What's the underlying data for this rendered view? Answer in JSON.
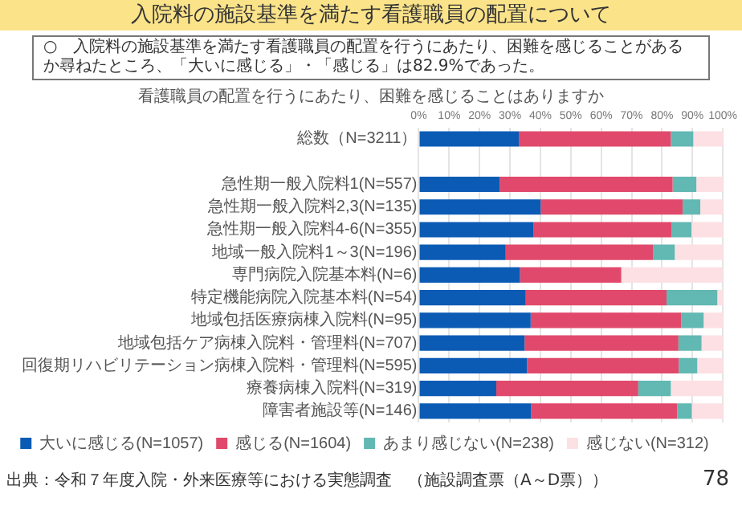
{
  "chart_data": {
    "type": "bar",
    "orientation": "horizontal",
    "stacked": true,
    "title": "入院料の施設基準を満たす看護職員の配置について",
    "subtitle": "看護職員の配置を行うにあたり、困難を感じることはありますか",
    "annotations": [
      "○　入院料の施設基準を満たす看護職員の配置を行うにあたり、困難を感じることがあるか尋ねたところ、「大いに感じる」・「感じる」は82.9%であった。",
      "出典：令和７年度入院・外来医療等における実態調査　（施設調査票（A～D票））",
      "78"
    ],
    "categories": [
      "総数（N=3211）",
      null,
      "急性期一般入院料1(N=557)",
      "急性期一般入院料2,3(N=135)",
      "急性期一般入院料4-6(N=355)",
      "地域一般入院料1～3(N=196)",
      "専門病院入院基本料(N=6)",
      "特定機能病院入院基本料(N=54)",
      "地域包括医療病棟入院料(N=95)",
      "地域包括ケア病棟入院料・管理料(N=707)",
      "回復期リハビリテーション病棟入院料・管理料(N=595)",
      "療養病棟入院料(N=319)",
      "障害者施設等(N=146)"
    ],
    "series": [
      {
        "name": "大いに感じる(N=1057)",
        "color": "#0b5bb5",
        "values": [
          32.9,
          null,
          26.6,
          40.1,
          37.8,
          28.6,
          33.3,
          35.2,
          36.8,
          34.8,
          35.6,
          25.5,
          37.0
        ]
      },
      {
        "name": "感じる(N=1604)",
        "color": "#e0496b",
        "values": [
          50.0,
          null,
          56.9,
          46.7,
          45.3,
          48.4,
          33.3,
          46.3,
          49.5,
          50.6,
          49.9,
          46.7,
          48.0
        ]
      },
      {
        "name": "あまり感じない(N=238)",
        "color": "#62b8b3",
        "values": [
          7.4,
          null,
          7.8,
          5.8,
          6.6,
          7.2,
          0,
          16.7,
          7.4,
          7.6,
          6.1,
          10.7,
          4.8
        ]
      },
      {
        "name": "感じない(N=312)",
        "color": "#fde0e4",
        "values": [
          9.7,
          null,
          8.7,
          7.4,
          10.3,
          15.8,
          33.3,
          1.9,
          6.3,
          7.0,
          8.4,
          17.2,
          10.2
        ]
      }
    ],
    "xlim": [
      0,
      100
    ],
    "xticks": [
      {
        "value": 0,
        "label": "0%"
      },
      {
        "value": 10,
        "label": "10%"
      },
      {
        "value": 20,
        "label": "20%"
      },
      {
        "value": 30,
        "label": "30%"
      },
      {
        "value": 40,
        "label": "40%"
      },
      {
        "value": 50,
        "label": "50%"
      },
      {
        "value": 60,
        "label": "60%"
      },
      {
        "value": 70,
        "label": "70%"
      },
      {
        "value": 80,
        "label": "80%"
      },
      {
        "value": 90,
        "label": "90%"
      },
      {
        "value": 100,
        "label": "100%"
      }
    ],
    "grid": "x",
    "legend": "bottom"
  }
}
